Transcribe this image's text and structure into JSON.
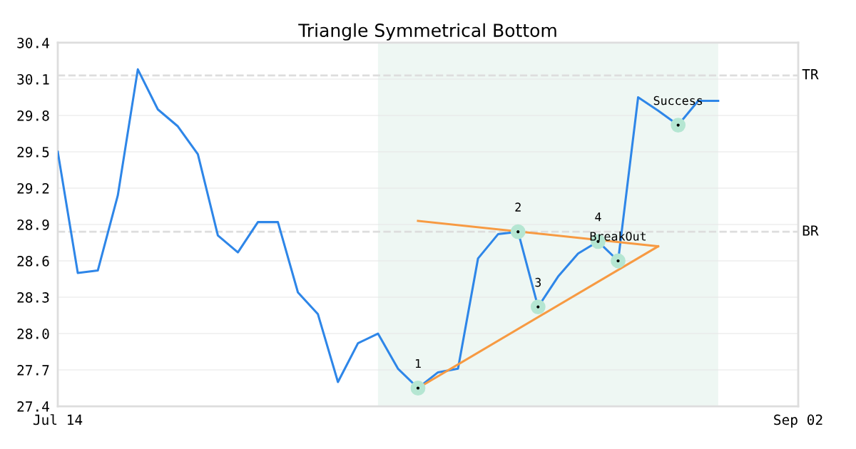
{
  "chart_data": {
    "type": "line",
    "title": "Triangle Symmetrical Bottom",
    "categories": [
      "Jul 14",
      null,
      null,
      null,
      null,
      null,
      null,
      null,
      null,
      null,
      null,
      null,
      null,
      null,
      null,
      null,
      null,
      null,
      null,
      null,
      null,
      null,
      null,
      null,
      null,
      null,
      null,
      null,
      null,
      null,
      null,
      null,
      null,
      null,
      null,
      null,
      null,
      "Sep 02"
    ],
    "ylim": [
      27.4,
      30.4
    ],
    "yticks": [
      27.4,
      27.7,
      {
        "value": 28.0,
        "label": "28.0"
      },
      28.3,
      28.6,
      28.9,
      29.2,
      29.5,
      29.8,
      30.1,
      30.4
    ],
    "grid": "y",
    "marker": "none",
    "line_style": "solid",
    "series": [
      {
        "color": "#2e86e8",
        "values": [
          29.5,
          28.5,
          28.52,
          29.14,
          30.18,
          29.85,
          29.71,
          29.48,
          28.81,
          28.67,
          28.92,
          28.92,
          28.34,
          28.16,
          27.6,
          27.92,
          28.0,
          27.71,
          27.55,
          27.68,
          27.71,
          28.62,
          28.82,
          28.84,
          28.22,
          28.47,
          28.66,
          28.76,
          28.6,
          29.95,
          29.84,
          29.72,
          29.92,
          29.92,
          null,
          null,
          null,
          null
        ]
      },
      {
        "type": "line",
        "color": "#f79a42",
        "values": [
          null,
          null,
          null,
          null,
          null,
          null,
          null,
          null,
          null,
          null,
          null,
          null,
          null,
          null,
          null,
          null,
          null,
          null,
          28.93,
          null,
          null,
          null,
          null,
          null,
          null,
          null,
          null,
          null,
          null,
          null,
          28.72,
          null,
          null,
          null,
          null,
          null,
          null,
          null
        ]
      },
      {
        "type": "line",
        "color": "#f79a42",
        "values": [
          null,
          null,
          null,
          null,
          null,
          null,
          null,
          null,
          null,
          null,
          null,
          null,
          null,
          null,
          null,
          null,
          null,
          null,
          27.55,
          null,
          null,
          null,
          null,
          null,
          null,
          null,
          null,
          null,
          null,
          null,
          28.72,
          null,
          null,
          null,
          null,
          null,
          null,
          null
        ]
      },
      {
        "type": "scatter",
        "marker": "circle",
        "color": "#b5e6d2",
        "values": [
          null,
          null,
          null,
          null,
          null,
          null,
          null,
          null,
          null,
          null,
          null,
          null,
          null,
          null,
          null,
          null,
          null,
          null,
          27.55,
          null,
          null,
          null,
          null,
          28.84,
          28.22,
          null,
          null,
          28.76,
          28.6,
          null,
          null,
          29.72,
          null,
          null,
          null,
          null,
          null,
          null
        ]
      }
    ],
    "annotations": [
      {
        "text": "1",
        "y": 27.55
      },
      {
        "text": "2",
        "y": 28.84
      },
      {
        "text": "3",
        "y": 28.22
      },
      {
        "text": "4",
        "y": 28.76
      },
      {
        "text": "BreakOut",
        "y": 28.6
      },
      {
        "text": "Success",
        "y": 29.72
      }
    ],
    "ref_lines": [
      {
        "axis": "y",
        "value": 30.13,
        "label": "TR",
        "color": "#dddddd",
        "line_style": "dashed"
      },
      {
        "axis": "y",
        "value": 28.84,
        "label": "BR",
        "color": "#dddddd",
        "line_style": "dashed"
      }
    ],
    "legend": false
  }
}
